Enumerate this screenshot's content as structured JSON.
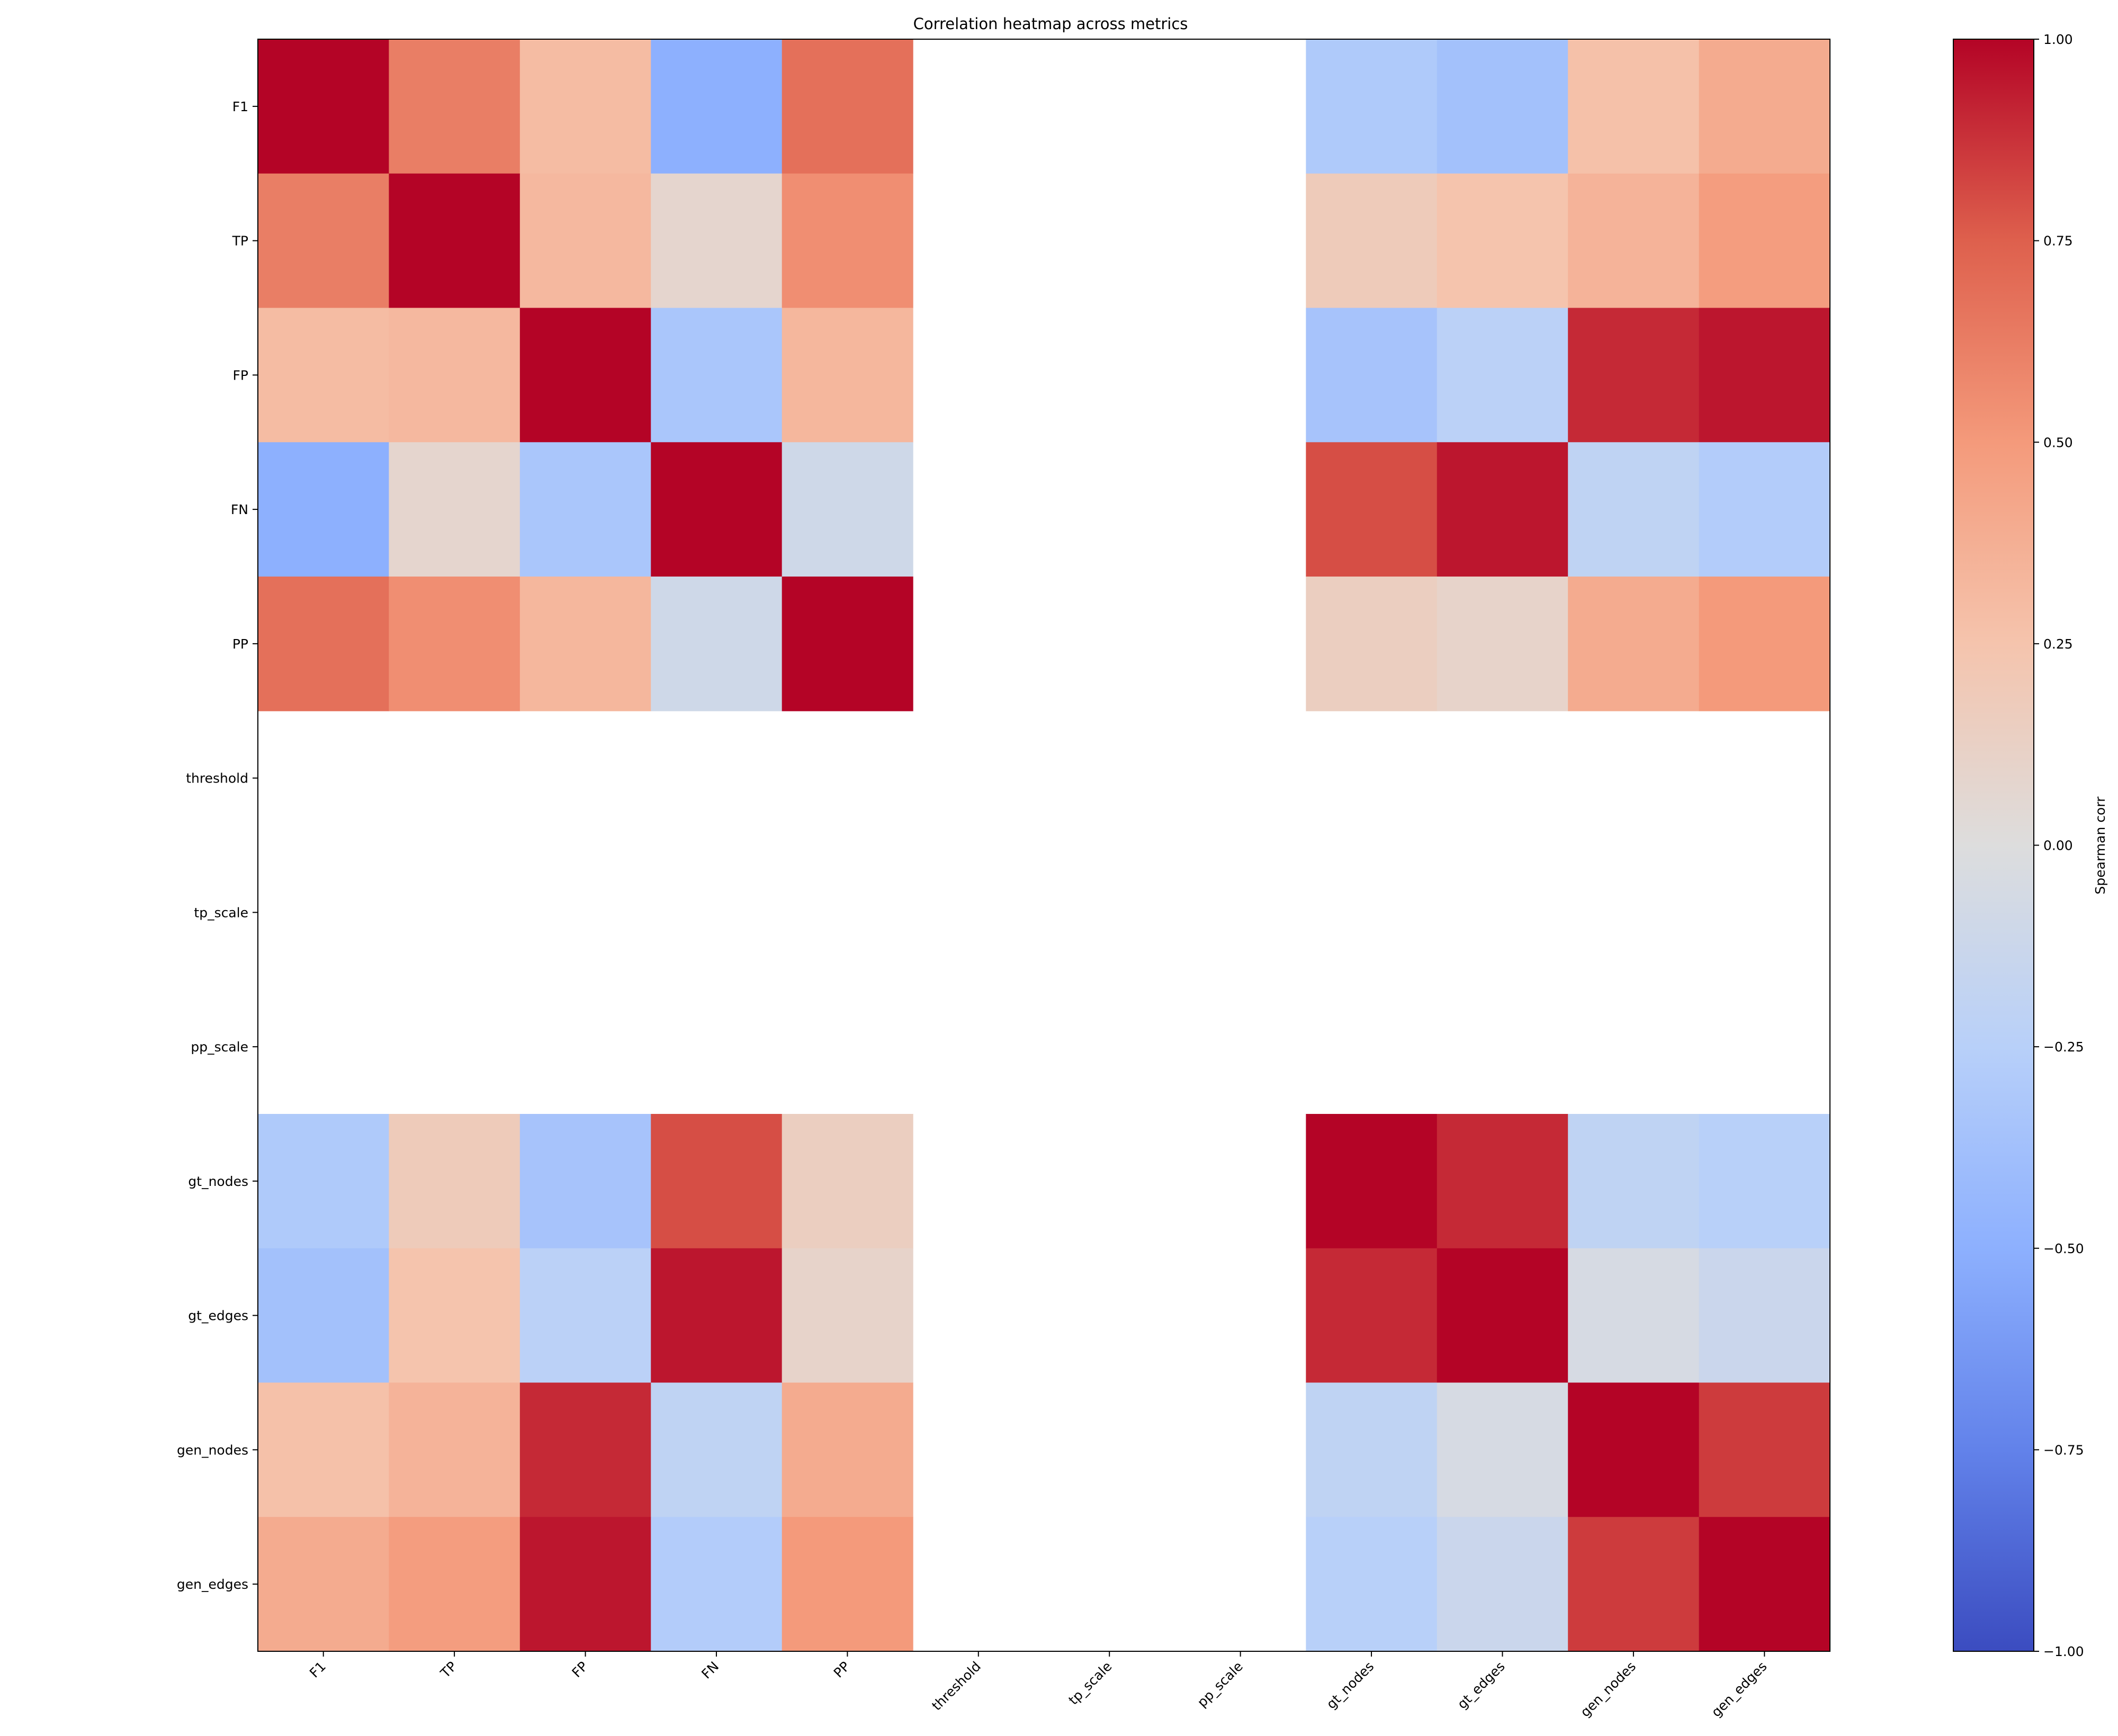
{
  "chart_data": {
    "type": "heatmap",
    "title": "Correlation heatmap across metrics",
    "row_labels": [
      "F1",
      "TP",
      "FP",
      "FN",
      "PP",
      "threshold",
      "tp_scale",
      "pp_scale",
      "gt_nodes",
      "gt_edges",
      "gen_nodes",
      "gen_edges"
    ],
    "col_labels": [
      "F1",
      "TP",
      "FP",
      "FN",
      "PP",
      "threshold",
      "tp_scale",
      "pp_scale",
      "gt_nodes",
      "gt_edges",
      "gen_nodes",
      "gen_edges"
    ],
    "values": [
      [
        1.0,
        0.62,
        0.3,
        -0.5,
        0.68,
        null,
        null,
        null,
        -0.3,
        -0.37,
        0.27,
        0.4
      ],
      [
        0.62,
        1.0,
        0.32,
        0.08,
        0.55,
        null,
        null,
        null,
        0.18,
        0.25,
        0.35,
        0.48
      ],
      [
        0.3,
        0.32,
        1.0,
        -0.33,
        0.33,
        null,
        null,
        null,
        -0.35,
        -0.23,
        0.9,
        0.95
      ],
      [
        -0.5,
        0.08,
        -0.33,
        1.0,
        -0.1,
        null,
        null,
        null,
        0.8,
        0.95,
        -0.2,
        -0.28
      ],
      [
        0.68,
        0.55,
        0.33,
        -0.1,
        1.0,
        null,
        null,
        null,
        0.15,
        0.1,
        0.4,
        0.5
      ],
      [
        null,
        null,
        null,
        null,
        null,
        null,
        null,
        null,
        null,
        null,
        null,
        null
      ],
      [
        null,
        null,
        null,
        null,
        null,
        null,
        null,
        null,
        null,
        null,
        null,
        null
      ],
      [
        null,
        null,
        null,
        null,
        null,
        null,
        null,
        null,
        null,
        null,
        null,
        null
      ],
      [
        -0.3,
        0.18,
        -0.35,
        0.8,
        0.15,
        null,
        null,
        null,
        1.0,
        0.9,
        -0.2,
        -0.25
      ],
      [
        -0.37,
        0.25,
        -0.23,
        0.95,
        0.1,
        null,
        null,
        null,
        0.9,
        1.0,
        -0.05,
        -0.13
      ],
      [
        0.27,
        0.35,
        0.9,
        -0.2,
        0.4,
        null,
        null,
        null,
        -0.2,
        -0.05,
        1.0,
        0.85
      ],
      [
        0.4,
        0.48,
        0.95,
        -0.28,
        0.5,
        null,
        null,
        null,
        -0.25,
        -0.13,
        0.85,
        1.0
      ]
    ],
    "colormap": "coolwarm",
    "vmin": -1.0,
    "vmax": 1.0,
    "colorbar": {
      "label": "Spearman corr",
      "ticks": [
        "1.00",
        "0.75",
        "0.50",
        "0.25",
        "0.00",
        "−0.25",
        "−0.50",
        "−0.75",
        "−1.00"
      ]
    }
  }
}
